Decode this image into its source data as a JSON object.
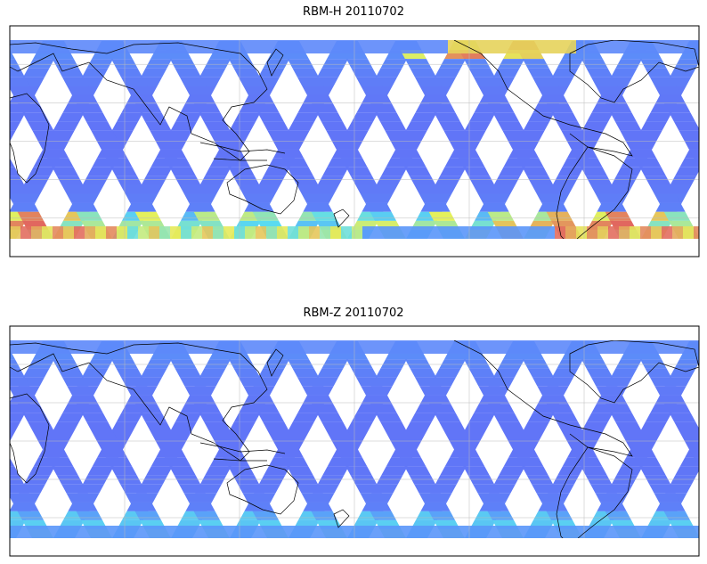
{
  "panels": [
    {
      "id": "h",
      "title": "RBM-H 20110702",
      "high_lat": "strong"
    },
    {
      "id": "z",
      "title": "RBM-Z 20110702",
      "high_lat": "weak"
    }
  ],
  "projection": "equirectangular",
  "lon_range": [
    100,
    460
  ],
  "lat_range": [
    -60,
    60
  ],
  "data_lat_coverage": [
    -50,
    50
  ],
  "grid": true,
  "colormap": "jet",
  "colors": {
    "low": "#6a6af5",
    "mid": "#5ad8f0",
    "high": "#e06060"
  }
}
